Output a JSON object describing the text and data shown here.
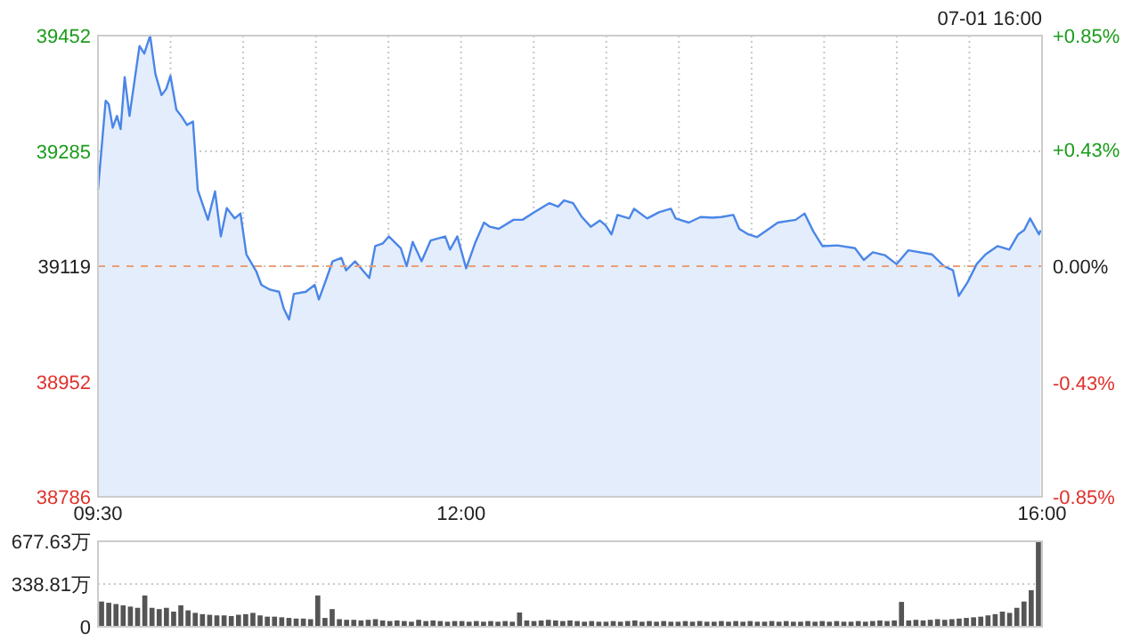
{
  "chart_data": [
    {
      "type": "area",
      "annotations": [
        "07-01 16:00"
      ],
      "color": "#4a86e8",
      "grid": true,
      "x": [
        9.5,
        9.553,
        9.574,
        9.602,
        9.631,
        9.656,
        9.684,
        9.717,
        9.786,
        9.819,
        9.859,
        9.896,
        9.938,
        9.97,
        9.999,
        10.04,
        10.073,
        10.113,
        10.154,
        10.187,
        10.257,
        10.306,
        10.346,
        10.387,
        10.441,
        10.481,
        10.522,
        10.591,
        10.625,
        10.686,
        10.747,
        10.779,
        10.816,
        10.849,
        10.931,
        10.992,
        11.021,
        11.073,
        11.115,
        11.176,
        11.208,
        11.27,
        11.368,
        11.409,
        11.462,
        11.503,
        11.585,
        11.625,
        11.667,
        11.728,
        11.79,
        11.891,
        11.924,
        11.974,
        12.035,
        12.096,
        12.158,
        12.198,
        12.26,
        12.361,
        12.423,
        12.505,
        12.607,
        12.668,
        12.709,
        12.771,
        12.832,
        12.893,
        12.955,
        12.995,
        13.036,
        13.077,
        13.158,
        13.191,
        13.281,
        13.363,
        13.445,
        13.477,
        13.568,
        13.649,
        13.731,
        13.792,
        13.875,
        13.915,
        13.977,
        14.038,
        14.12,
        14.181,
        14.304,
        14.365,
        14.426,
        14.488,
        14.59,
        14.712,
        14.773,
        14.835,
        14.917,
        14.998,
        15.08,
        15.243,
        15.325,
        15.387,
        15.427,
        15.488,
        15.55,
        15.611,
        15.693,
        15.775,
        15.836,
        15.877,
        15.918,
        15.979,
        15.99
      ],
      "values": [
        39229,
        39358,
        39353,
        39319,
        39336,
        39317,
        39392,
        39336,
        39437,
        39426,
        39452,
        39396,
        39366,
        39375,
        39394,
        39345,
        39336,
        39323,
        39328,
        39229,
        39186,
        39227,
        39162,
        39203,
        39188,
        39195,
        39136,
        39111,
        39092,
        39085,
        39082,
        39058,
        39042,
        39079,
        39082,
        39092,
        39071,
        39101,
        39126,
        39131,
        39113,
        39126,
        39102,
        39148,
        39152,
        39162,
        39145,
        39119,
        39154,
        39126,
        39156,
        39162,
        39143,
        39162,
        39116,
        39152,
        39182,
        39176,
        39173,
        39186,
        39186,
        39197,
        39210,
        39205,
        39214,
        39210,
        39190,
        39176,
        39185,
        39178,
        39165,
        39193,
        39188,
        39202,
        39188,
        39197,
        39202,
        39188,
        39182,
        39190,
        39189,
        39190,
        39193,
        39173,
        39165,
        39161,
        39173,
        39182,
        39186,
        39195,
        39169,
        39148,
        39149,
        39145,
        39128,
        39139,
        39135,
        39122,
        39142,
        39136,
        39119,
        39113,
        39076,
        39096,
        39122,
        39136,
        39148,
        39143,
        39165,
        39171,
        39188,
        39165,
        39171
      ],
      "xlim": [
        9.5,
        16
      ],
      "xticks": [
        {
          "value": 9.5,
          "label": "09:30"
        },
        {
          "value": 10,
          "label": null
        },
        {
          "value": 10.5,
          "label": null
        },
        {
          "value": 11,
          "label": null
        },
        {
          "value": 11.5,
          "label": null
        },
        {
          "value": 12,
          "label": "12:00"
        },
        {
          "value": 12.5,
          "label": null
        },
        {
          "value": 13,
          "label": null
        },
        {
          "value": 13.5,
          "label": null
        },
        {
          "value": 14,
          "label": null
        },
        {
          "value": 14.5,
          "label": null
        },
        {
          "value": 15,
          "label": null
        },
        {
          "value": 15.5,
          "label": null
        },
        {
          "value": 16,
          "label": "16:00"
        }
      ],
      "ylim": [
        38786,
        39452
      ],
      "yticks": [
        38786,
        38952,
        39119,
        39285,
        39452
      ],
      "y2lim": [
        -0.85,
        0.85
      ],
      "y2ticks": [
        {
          "value": -0.85,
          "label": "-0.85%"
        },
        {
          "value": -0.43,
          "label": "-0.43%"
        },
        {
          "value": 0,
          "label": "0.00%"
        },
        {
          "value": 0.43,
          "label": "+0.43%"
        },
        {
          "value": 0.85,
          "label": "+0.85%"
        }
      ],
      "ref_lines": [
        {
          "axis": "y",
          "value": 39119,
          "color": "#e8a07a",
          "line_style": "dashed"
        }
      ]
    },
    {
      "type": "bar",
      "color": "#555555",
      "grid": "y",
      "tick_labels": "y",
      "categories": [
        null,
        null,
        null,
        null,
        null,
        null,
        null,
        null,
        null,
        null,
        null,
        null,
        null,
        null,
        null,
        null,
        null,
        null,
        null,
        null,
        null,
        null,
        null,
        null,
        null,
        null,
        null,
        null,
        null,
        null,
        null,
        null,
        null,
        null,
        null,
        null,
        null,
        null,
        null,
        null,
        null,
        null,
        null,
        null,
        null,
        null,
        null,
        null,
        null,
        null,
        null,
        null,
        null,
        null,
        null,
        null,
        null,
        null,
        null,
        null,
        null,
        null,
        null,
        null,
        null,
        null,
        null,
        null,
        null,
        null,
        null,
        null,
        null,
        null,
        null,
        null,
        null,
        null,
        null,
        null,
        null,
        null,
        null,
        null,
        null,
        null,
        null,
        null,
        null,
        null,
        null,
        null,
        null,
        null,
        null,
        null,
        null,
        null,
        null,
        null,
        null,
        null,
        null,
        null,
        null,
        null,
        null,
        null,
        null,
        null,
        null,
        null,
        null,
        null,
        null,
        null,
        null,
        null,
        null,
        null,
        null,
        null,
        null,
        null,
        null,
        null,
        null,
        null,
        null,
        null,
        null
      ],
      "values": [
        200,
        190,
        180,
        170,
        160,
        150,
        248,
        150,
        140,
        150,
        120,
        170,
        130,
        110,
        100,
        95,
        90,
        90,
        85,
        95,
        100,
        110,
        90,
        80,
        80,
        75,
        70,
        65,
        65,
        60,
        248,
        70,
        140,
        60,
        55,
        55,
        50,
        55,
        60,
        50,
        45,
        50,
        45,
        40,
        55,
        45,
        50,
        45,
        40,
        45,
        45,
        40,
        45,
        40,
        45,
        40,
        45,
        40,
        113,
        50,
        45,
        50,
        55,
        50,
        45,
        50,
        45,
        40,
        45,
        40,
        40,
        45,
        40,
        45,
        50,
        40,
        45,
        40,
        45,
        40,
        40,
        45,
        40,
        45,
        40,
        40,
        45,
        40,
        45,
        40,
        45,
        40,
        40,
        45,
        40,
        45,
        40,
        40,
        45,
        40,
        45,
        40,
        45,
        40,
        40,
        45,
        40,
        45,
        50,
        45,
        50,
        197,
        50,
        55,
        50,
        55,
        60,
        55,
        60,
        65,
        70,
        75,
        80,
        90,
        100,
        120,
        110,
        150,
        200,
        290,
        677.63
      ],
      "ylim": [
        0,
        677.63
      ],
      "yticks": [
        0,
        {
          "value": 338.81,
          "label": "338.81万"
        },
        {
          "value": 677.63,
          "label": "677.63万"
        }
      ]
    }
  ]
}
